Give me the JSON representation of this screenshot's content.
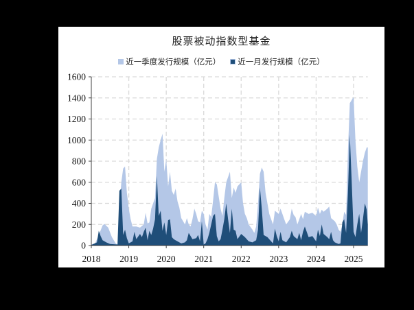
{
  "chart_data": {
    "type": "area",
    "title": "股票被动指数型基金",
    "xlabel": "",
    "ylabel": "",
    "ylim": [
      0,
      1600
    ],
    "yticks": [
      0,
      200,
      400,
      600,
      800,
      1000,
      1200,
      1400,
      1600
    ],
    "xlim": [
      2018.0,
      2025.38
    ],
    "xticks": [
      "2018",
      "2019",
      "2020",
      "2021",
      "2022",
      "2023",
      "2024",
      "2025"
    ],
    "grid": "dashed",
    "legend_position": "top",
    "series": [
      {
        "name": "近一季度发行规模（亿元）",
        "color": "#b4c7e7",
        "x": [
          2018.0,
          2018.1,
          2018.2,
          2018.3,
          2018.35,
          2018.45,
          2018.55,
          2018.65,
          2018.7,
          2018.75,
          2018.8,
          2018.85,
          2018.9,
          2018.95,
          2019.0,
          2019.05,
          2019.1,
          2019.2,
          2019.3,
          2019.4,
          2019.45,
          2019.5,
          2019.55,
          2019.6,
          2019.65,
          2019.7,
          2019.75,
          2019.8,
          2019.85,
          2019.9,
          2019.95,
          2020.0,
          2020.05,
          2020.1,
          2020.15,
          2020.2,
          2020.25,
          2020.3,
          2020.35,
          2020.4,
          2020.5,
          2020.55,
          2020.6,
          2020.65,
          2020.7,
          2020.75,
          2020.8,
          2020.85,
          2020.9,
          2020.95,
          2021.0,
          2021.05,
          2021.1,
          2021.15,
          2021.2,
          2021.25,
          2021.3,
          2021.35,
          2021.45,
          2021.5,
          2021.55,
          2021.6,
          2021.65,
          2021.7,
          2021.75,
          2021.8,
          2021.85,
          2021.9,
          2022.0,
          2022.05,
          2022.1,
          2022.15,
          2022.2,
          2022.3,
          2022.35,
          2022.4,
          2022.45,
          2022.5,
          2022.55,
          2022.6,
          2022.65,
          2022.7,
          2022.75,
          2022.8,
          2022.85,
          2022.9,
          2023.0,
          2023.05,
          2023.1,
          2023.15,
          2023.2,
          2023.3,
          2023.35,
          2023.4,
          2023.45,
          2023.5,
          2023.55,
          2023.6,
          2023.65,
          2023.7,
          2023.8,
          2023.9,
          2024.0,
          2024.05,
          2024.1,
          2024.15,
          2024.2,
          2024.3,
          2024.35,
          2024.4,
          2024.5,
          2024.55,
          2024.6,
          2024.65,
          2024.7,
          2024.75,
          2024.8,
          2024.85,
          2024.9,
          2024.95,
          2025.0,
          2025.05,
          2025.1,
          2025.15,
          2025.2,
          2025.25,
          2025.3,
          2025.35,
          2025.38
        ],
        "values": [
          10,
          20,
          100,
          190,
          205,
          170,
          80,
          20,
          10,
          350,
          600,
          730,
          750,
          500,
          350,
          250,
          180,
          180,
          170,
          200,
          310,
          210,
          220,
          350,
          400,
          450,
          820,
          930,
          1000,
          1060,
          700,
          820,
          560,
          700,
          520,
          480,
          540,
          420,
          360,
          260,
          200,
          260,
          200,
          180,
          250,
          350,
          300,
          230,
          220,
          330,
          300,
          200,
          150,
          300,
          270,
          430,
          600,
          580,
          350,
          280,
          450,
          600,
          650,
          700,
          450,
          550,
          500,
          560,
          600,
          400,
          300,
          260,
          200,
          150,
          120,
          180,
          400,
          680,
          740,
          700,
          500,
          400,
          300,
          250,
          200,
          330,
          300,
          350,
          300,
          250,
          200,
          250,
          350,
          290,
          270,
          200,
          250,
          300,
          250,
          320,
          300,
          310,
          280,
          360,
          300,
          340,
          320,
          350,
          370,
          260,
          230,
          200,
          150,
          130,
          200,
          320,
          290,
          900,
          1350,
          1380,
          1410,
          1000,
          750,
          600,
          700,
          800,
          880,
          930,
          930
        ]
      },
      {
        "name": "近一月发行规模（亿元）",
        "color": "#1f4e79",
        "x": [
          2018.0,
          2018.15,
          2018.2,
          2018.25,
          2018.3,
          2018.4,
          2018.5,
          2018.7,
          2018.75,
          2018.8,
          2018.85,
          2018.9,
          2018.95,
          2019.0,
          2019.1,
          2019.15,
          2019.2,
          2019.3,
          2019.35,
          2019.4,
          2019.45,
          2019.5,
          2019.55,
          2019.6,
          2019.65,
          2019.7,
          2019.75,
          2019.8,
          2019.85,
          2019.9,
          2019.95,
          2020.0,
          2020.05,
          2020.1,
          2020.15,
          2020.2,
          2020.3,
          2020.4,
          2020.5,
          2020.55,
          2020.6,
          2020.7,
          2020.8,
          2020.85,
          2020.9,
          2020.95,
          2021.0,
          2021.05,
          2021.1,
          2021.15,
          2021.2,
          2021.25,
          2021.3,
          2021.35,
          2021.4,
          2021.45,
          2021.5,
          2021.55,
          2021.6,
          2021.65,
          2021.7,
          2021.75,
          2021.8,
          2021.85,
          2021.9,
          2022.0,
          2022.1,
          2022.2,
          2022.3,
          2022.4,
          2022.45,
          2022.5,
          2022.55,
          2022.6,
          2022.7,
          2022.8,
          2022.85,
          2022.9,
          2022.95,
          2023.0,
          2023.05,
          2023.1,
          2023.2,
          2023.3,
          2023.35,
          2023.4,
          2023.5,
          2023.55,
          2023.6,
          2023.65,
          2023.7,
          2023.8,
          2023.9,
          2024.0,
          2024.05,
          2024.1,
          2024.15,
          2024.2,
          2024.3,
          2024.35,
          2024.4,
          2024.45,
          2024.5,
          2024.6,
          2024.65,
          2024.7,
          2024.75,
          2024.8,
          2024.85,
          2024.9,
          2024.95,
          2025.0,
          2025.05,
          2025.1,
          2025.15,
          2025.2,
          2025.25,
          2025.3,
          2025.35,
          2025.38
        ],
        "values": [
          5,
          30,
          140,
          90,
          50,
          30,
          15,
          10,
          520,
          540,
          100,
          150,
          70,
          20,
          40,
          130,
          60,
          110,
          80,
          130,
          170,
          50,
          140,
          100,
          160,
          250,
          660,
          280,
          330,
          140,
          220,
          100,
          240,
          250,
          80,
          60,
          40,
          20,
          30,
          50,
          120,
          60,
          70,
          100,
          40,
          230,
          10,
          20,
          60,
          120,
          200,
          280,
          300,
          90,
          40,
          60,
          150,
          250,
          400,
          250,
          120,
          350,
          150,
          140,
          60,
          110,
          80,
          40,
          30,
          50,
          150,
          550,
          350,
          100,
          80,
          40,
          20,
          160,
          90,
          40,
          130,
          50,
          30,
          80,
          140,
          90,
          60,
          120,
          50,
          130,
          180,
          80,
          90,
          40,
          150,
          90,
          200,
          110,
          80,
          60,
          130,
          50,
          30,
          15,
          20,
          220,
          250,
          120,
          500,
          1050,
          600,
          130,
          80,
          200,
          300,
          120,
          250,
          400,
          340,
          200
        ]
      }
    ]
  },
  "legend": {
    "items": [
      {
        "label": "近一季度发行规模（亿元）",
        "color": "#b4c7e7"
      },
      {
        "label": "近一月发行规模（亿元）",
        "color": "#1f4e79"
      }
    ]
  }
}
